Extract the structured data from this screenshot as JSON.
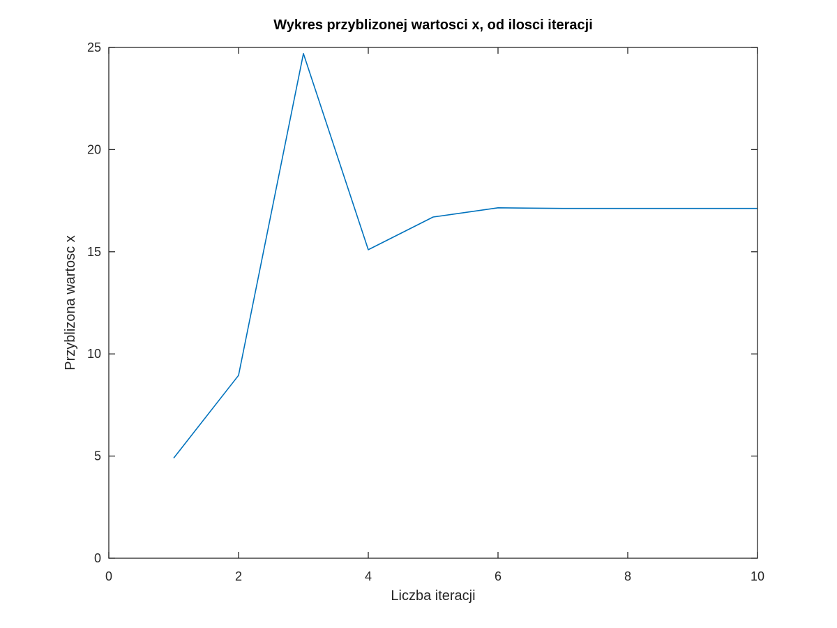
{
  "chart_data": {
    "type": "line",
    "title": "Wykres przyblizonej wartosci x, od ilosci iteracji",
    "xlabel": "Liczba iteracji",
    "ylabel": "Przyblizona wartosc x",
    "xlim": [
      0,
      10
    ],
    "ylim": [
      0,
      25
    ],
    "xticks": [
      0,
      2,
      4,
      6,
      8,
      10
    ],
    "yticks": [
      0,
      5,
      10,
      15,
      20,
      25
    ],
    "grid": false,
    "legend": "none",
    "series": [
      {
        "color": "#0072bd",
        "x": [
          1,
          2,
          3,
          4,
          5,
          6,
          7,
          8,
          9,
          10
        ],
        "y": [
          4.9,
          8.95,
          24.7,
          15.1,
          16.7,
          17.15,
          17.12,
          17.12,
          17.12,
          17.12
        ]
      }
    ]
  }
}
